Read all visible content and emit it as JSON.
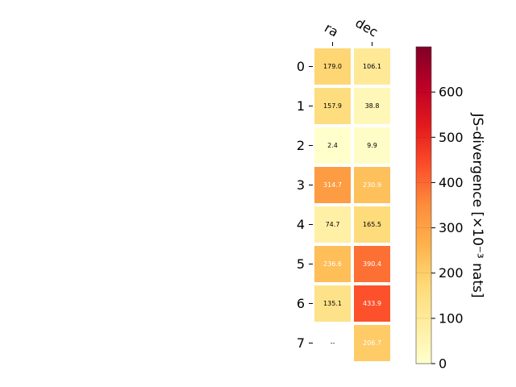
{
  "chart_data": {
    "type": "heatmap",
    "columns": [
      "ra",
      "dec"
    ],
    "rows": [
      "0",
      "1",
      "2",
      "3",
      "4",
      "5",
      "6",
      "7"
    ],
    "values": [
      [
        179.0,
        106.1
      ],
      [
        157.9,
        38.8
      ],
      [
        2.4,
        9.9
      ],
      [
        314.7,
        230.9
      ],
      [
        74.7,
        165.5
      ],
      [
        236.6,
        390.4
      ],
      [
        135.1,
        433.9
      ],
      [
        null,
        206.7
      ]
    ],
    "cell_labels": [
      [
        "179.0",
        "106.1"
      ],
      [
        "157.9",
        "38.8"
      ],
      [
        "2.4",
        "9.9"
      ],
      [
        "314.7",
        "230.9"
      ],
      [
        "74.7",
        "165.5"
      ],
      [
        "236.6",
        "390.4"
      ],
      [
        "135.1",
        "433.9"
      ],
      [
        "--",
        "206.7"
      ]
    ],
    "colorbar": {
      "label": "JS-divergence [×10⁻³ nats]",
      "range": [
        0,
        700
      ],
      "ticks": [
        0,
        100,
        200,
        300,
        400,
        500,
        600
      ],
      "tick_labels": [
        "0",
        "100",
        "200",
        "300",
        "400",
        "500",
        "600"
      ],
      "colormap": "YlOrRd"
    },
    "colormap_stops": [
      "#ffffcc",
      "#ffeda0",
      "#fed976",
      "#feb24c",
      "#fd8d3c",
      "#fc4e2a",
      "#e31a1c",
      "#bd0026",
      "#800026"
    ],
    "text_colors": {
      "dark": "#000000",
      "light": "#ffffff"
    }
  }
}
